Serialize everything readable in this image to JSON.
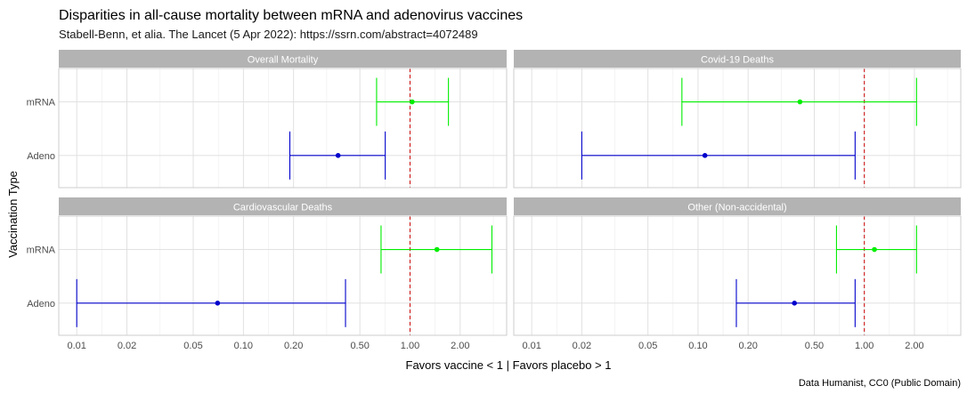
{
  "chart_data": {
    "type": "forest",
    "title": "Disparities in all-cause mortality between mRNA and adenovirus vaccines",
    "subtitle": "Stabell-Benn, et alia. The Lancet (5 Apr 2022): https://ssrn.com/abstract=4072489",
    "xlabel": "Favors vaccine < 1  | Favors placebo > 1",
    "ylabel": "Vaccination Type",
    "caption": "Data Humanist, CC0 (Public Domain)",
    "x_scale": "log10",
    "xlim": [
      0.0078,
      3.8
    ],
    "x_ticks": [
      0.01,
      0.02,
      0.05,
      0.1,
      0.2,
      0.5,
      1,
      2
    ],
    "x_tick_labels": [
      "0.01",
      "0.02",
      "0.05",
      "0.10",
      "0.20",
      "0.50",
      "1.00",
      "2.00"
    ],
    "reference_line": 1,
    "categories": [
      "mRNA",
      "Adeno"
    ],
    "colors": {
      "mRNA": "#00ee00",
      "Adeno": "#0000cc",
      "reference": "#cc0000"
    },
    "facets": [
      {
        "name": "Overall Mortality",
        "rows": [
          {
            "type": "mRNA",
            "estimate": 1.03,
            "lower": 0.63,
            "upper": 1.7
          },
          {
            "type": "Adeno",
            "estimate": 0.37,
            "lower": 0.19,
            "upper": 0.71
          }
        ]
      },
      {
        "name": "Covid-19 Deaths",
        "rows": [
          {
            "type": "mRNA",
            "estimate": 0.41,
            "lower": 0.08,
            "upper": 2.06
          },
          {
            "type": "Adeno",
            "estimate": 0.11,
            "lower": 0.02,
            "upper": 0.88
          }
        ]
      },
      {
        "name": "Cardiovascular Deaths",
        "rows": [
          {
            "type": "mRNA",
            "estimate": 1.45,
            "lower": 0.67,
            "upper": 3.1
          },
          {
            "type": "Adeno",
            "estimate": 0.07,
            "lower": 0.01,
            "upper": 0.41
          }
        ]
      },
      {
        "name": "Other (Non-accidental)",
        "rows": [
          {
            "type": "mRNA",
            "estimate": 1.15,
            "lower": 0.68,
            "upper": 2.06
          },
          {
            "type": "Adeno",
            "estimate": 0.38,
            "lower": 0.17,
            "upper": 0.88
          }
        ]
      }
    ]
  }
}
